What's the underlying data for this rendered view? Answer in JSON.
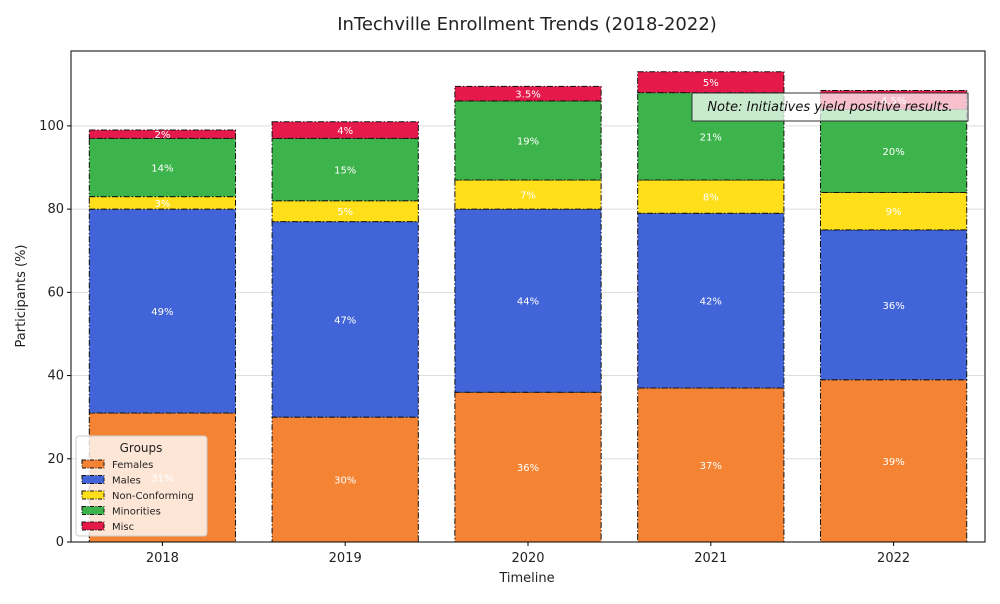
{
  "chart_data": {
    "type": "bar",
    "stacked": true,
    "title": "InTechville Enrollment Trends (2018-2022)",
    "xlabel": "Timeline",
    "ylabel": "Participants (%)",
    "ylim": [
      0,
      118
    ],
    "yticks": [
      0,
      20,
      40,
      60,
      80,
      100
    ],
    "grid": "y",
    "categories": [
      "2018",
      "2019",
      "2020",
      "2021",
      "2022"
    ],
    "series": [
      {
        "name": "Females",
        "color": "#f48433",
        "values": [
          31,
          30,
          36,
          37,
          39
        ],
        "labels": [
          "31%",
          "30%",
          "36%",
          "37%",
          "39%"
        ]
      },
      {
        "name": "Males",
        "color": "#4165d8",
        "values": [
          49,
          47,
          44,
          42,
          36
        ],
        "labels": [
          "49%",
          "47%",
          "44%",
          "42%",
          "36%"
        ]
      },
      {
        "name": "Non-Conforming",
        "color": "#ffde1a",
        "values": [
          3,
          5,
          7,
          8,
          9
        ],
        "labels": [
          "3%",
          "5%",
          "7%",
          "8%",
          "9%"
        ]
      },
      {
        "name": "Minorities",
        "color": "#3cb44b",
        "values": [
          14,
          15,
          19,
          21,
          20
        ],
        "labels": [
          "14%",
          "15%",
          "19%",
          "21%",
          "20%"
        ]
      },
      {
        "name": "Misc",
        "color": "#e6194b",
        "values": [
          2,
          4,
          3.5,
          5,
          4.5
        ],
        "labels": [
          "2%",
          "4%",
          "3.5%",
          "5%",
          "4.5%"
        ]
      }
    ],
    "legend": {
      "title": "Groups",
      "position": "lower-left"
    },
    "annotation": {
      "text": "Note: Initiatives yield positive results.",
      "position": "top-right"
    }
  }
}
